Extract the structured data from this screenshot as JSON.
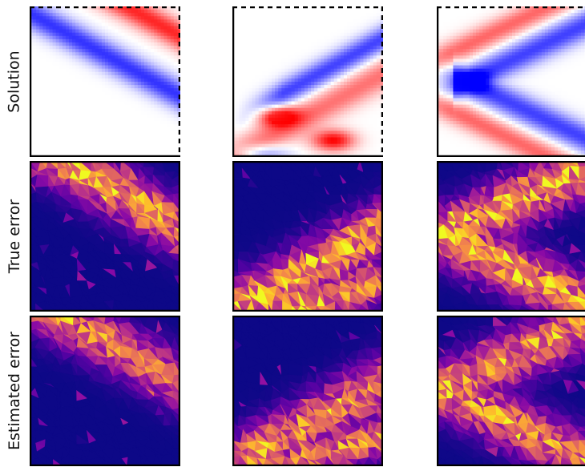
{
  "rows": [
    {
      "label": "Solution",
      "kind": "solution"
    },
    {
      "label": "True error",
      "kind": "true_error"
    },
    {
      "label": "Estimated error",
      "kind": "estimated_error"
    }
  ],
  "colors": {
    "solution_positive": "#ff0000",
    "solution_zero": "#ffffff",
    "solution_negative": "#0000ff",
    "error_low": "#0d0887",
    "error_mid": "#cc4778",
    "error_high": "#f0f921"
  },
  "colormaps": {
    "solution": "bwr",
    "error": "plasma"
  }
}
